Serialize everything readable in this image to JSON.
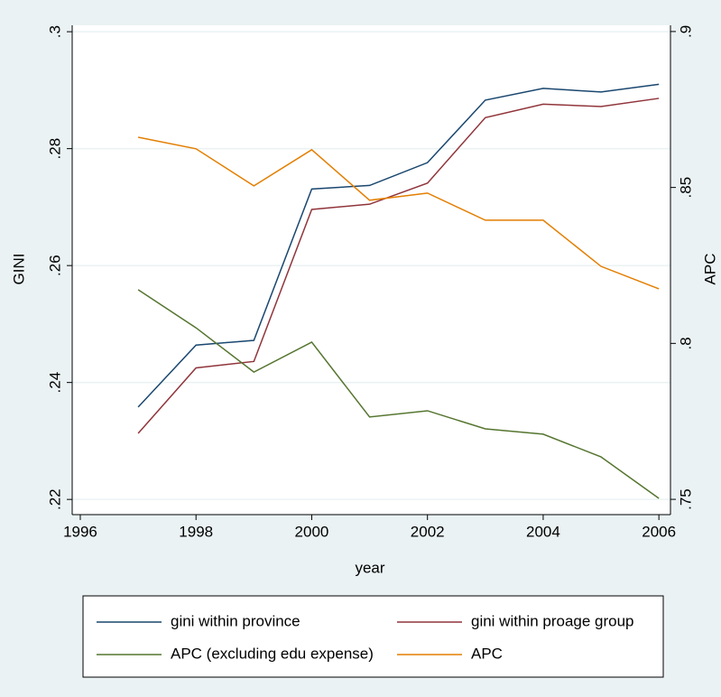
{
  "chart_data": {
    "type": "line",
    "x_label": "year",
    "y_label": "GINI",
    "y2_label": "APC",
    "x": [
      1997,
      1998,
      1999,
      2000,
      2001,
      2002,
      2003,
      2004,
      2005,
      2006
    ],
    "series": [
      {
        "name": "gini within province",
        "color": "#1a476f",
        "axis": "y",
        "values": [
          0.2358,
          0.2464,
          0.2472,
          0.2731,
          0.2737,
          0.2776,
          0.2883,
          0.2903,
          0.2897,
          0.291
        ]
      },
      {
        "name": "gini within proage group",
        "color": "#90353b",
        "axis": "y",
        "values": [
          0.2313,
          0.2425,
          0.2436,
          0.2696,
          0.2705,
          0.2741,
          0.2853,
          0.2876,
          0.2872,
          0.2886
        ]
      },
      {
        "name": "APC (excluding edu expense)",
        "color": "#55752f",
        "axis": "y2",
        "values": [
          0.8172,
          0.805,
          0.7908,
          0.8004,
          0.7764,
          0.7784,
          0.7726,
          0.7709,
          0.7636,
          0.7503
        ]
      },
      {
        "name": "APC",
        "color": "#e37e00",
        "axis": "y2",
        "values": [
          0.8661,
          0.8624,
          0.8505,
          0.8621,
          0.8459,
          0.8482,
          0.8395,
          0.8395,
          0.8247,
          0.8175
        ]
      }
    ],
    "xlim": [
      1995.86,
      2006.2
    ],
    "xticks": [
      1996,
      1998,
      2000,
      2002,
      2004,
      2006
    ],
    "ylim": [
      0.2174,
      0.3011
    ],
    "yticks": [
      {
        "value": 0.22,
        "label": ".22"
      },
      {
        "value": 0.24,
        "label": ".24"
      },
      {
        "value": 0.26,
        "label": ".26"
      },
      {
        "value": 0.28,
        "label": ".28"
      },
      {
        "value": 0.3,
        "label": ".3"
      }
    ],
    "y2lim": [
      0.7451,
      0.902
    ],
    "y2ticks": [
      {
        "value": 0.75,
        "label": ".75"
      },
      {
        "value": 0.8,
        "label": ".8"
      },
      {
        "value": 0.85,
        "label": ".85"
      },
      {
        "value": 0.9,
        "label": ".9"
      }
    ],
    "grid": true,
    "legend": "bottom"
  }
}
